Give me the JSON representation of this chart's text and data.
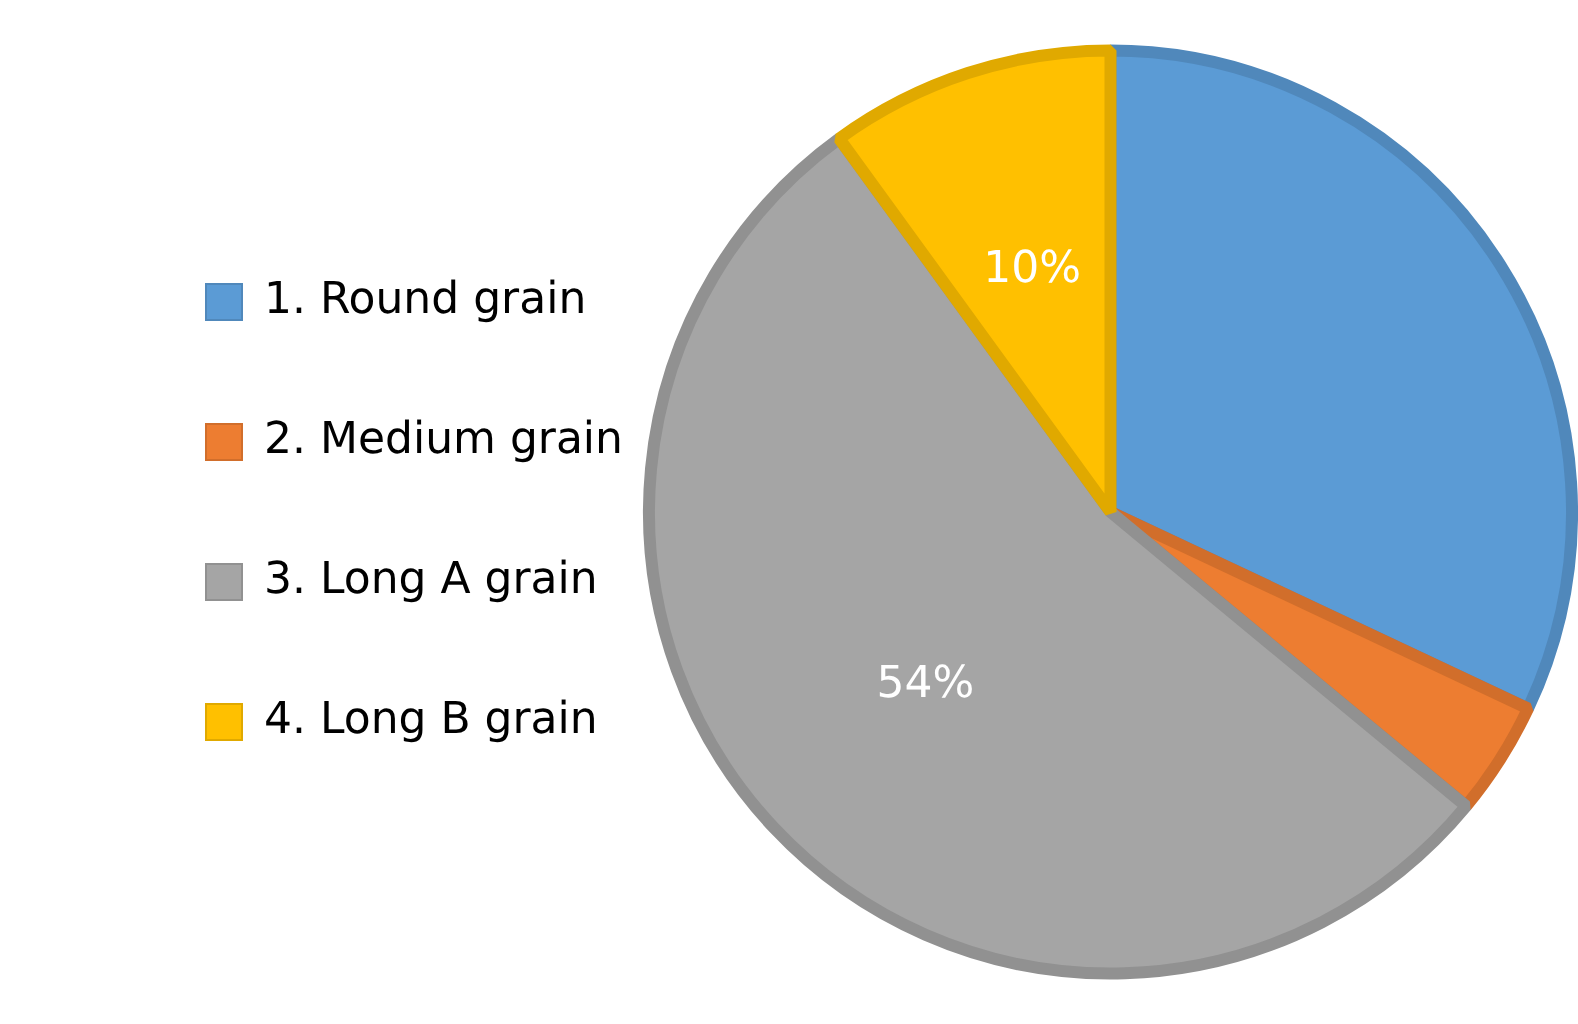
{
  "chart_data": {
    "type": "pie",
    "categories": [
      "1. Round grain",
      "2. Medium grain",
      "3. Long A grain",
      "4. Long B grain"
    ],
    "values": [
      32,
      4,
      54,
      10
    ],
    "colors": [
      "#5b9bd5",
      "#ed7d31",
      "#a5a5a5",
      "#ffc000"
    ],
    "value_labels": [
      null,
      null,
      "54%",
      "10%"
    ],
    "legend": "left"
  }
}
